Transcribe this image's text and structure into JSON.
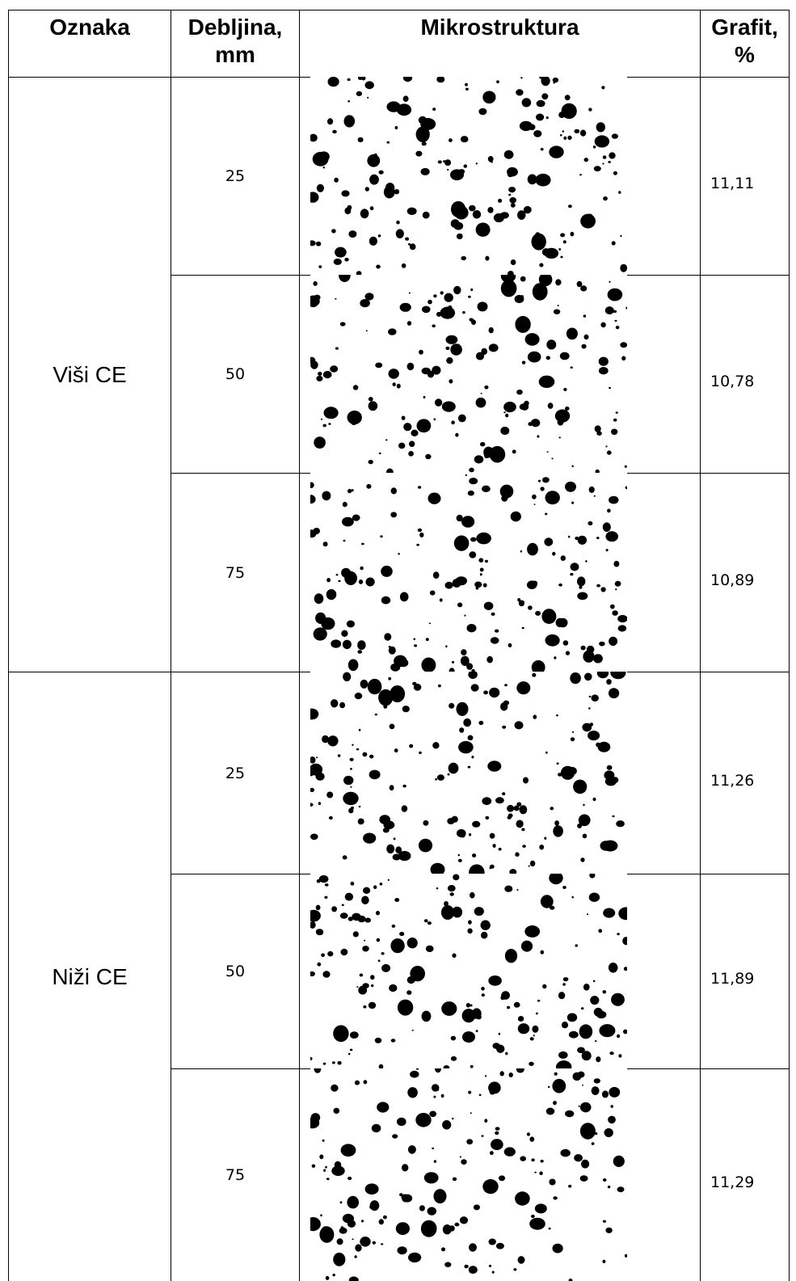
{
  "header": {
    "columns": [
      "Oznaka",
      "Debljina, mm",
      "Mikrostruktura",
      "Grafit, %"
    ]
  },
  "groups": [
    {
      "label": "Viši CE",
      "rows": [
        {
          "thickness": 25,
          "graphite": "11,11"
        },
        {
          "thickness": 50,
          "graphite": "10,78"
        },
        {
          "thickness": 75,
          "graphite": "10,89"
        }
      ]
    },
    {
      "label": "Niži CE",
      "rows": [
        {
          "thickness": 25,
          "graphite": "11,26"
        },
        {
          "thickness": 50,
          "graphite": "11,89"
        },
        {
          "thickness": 75,
          "graphite": "11,29"
        }
      ]
    }
  ]
}
